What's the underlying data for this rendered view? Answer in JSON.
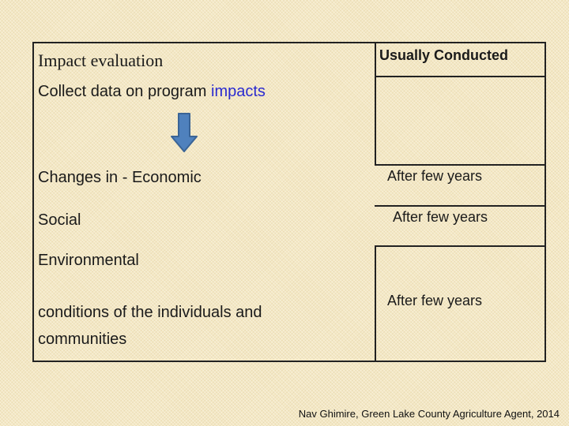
{
  "table": {
    "header_left": "Impact evaluation",
    "header_right": "Usually Conducted",
    "collect_prefix": "Collect data on program",
    "collect_highlight": "impacts",
    "changes": "Changes in - Economic",
    "right_1": "After few years",
    "social": "Social",
    "right_2": "After few years",
    "environmental": "Environmental",
    "conditions_line1": "conditions of the individuals and",
    "conditions_line2": "communities",
    "right_3": "After few years"
  },
  "arrow": {
    "icon": "down-arrow-icon",
    "fill": "#4f81bd",
    "stroke": "#3a6496"
  },
  "credit": "Nav Ghimire, Green Lake County Agriculture Agent, 2014",
  "colors": {
    "background": "#f4e8c4",
    "highlight": "#2a2ad0",
    "border": "#222222"
  }
}
